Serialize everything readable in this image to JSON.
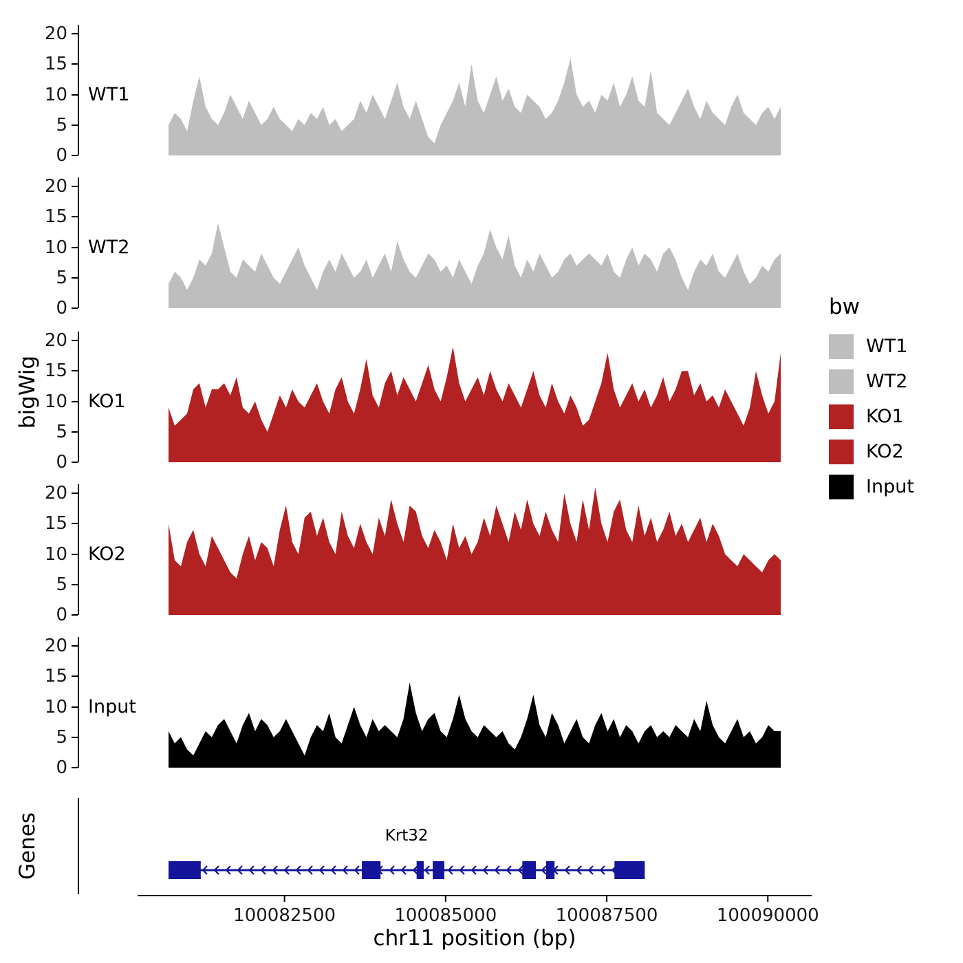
{
  "labels": {
    "y_axis": "bigWig",
    "genes_axis": "Genes",
    "x_axis": "chr11 position (bp)"
  },
  "legend": {
    "title": "bw",
    "items": [
      {
        "label": "WT1",
        "color": "#BEBEBE"
      },
      {
        "label": "WT2",
        "color": "#BEBEBE"
      },
      {
        "label": "KO1",
        "color": "#B22222"
      },
      {
        "label": "KO2",
        "color": "#B22222"
      },
      {
        "label": "Input",
        "color": "#000000"
      }
    ]
  },
  "chart_data": {
    "type": "area",
    "title": "",
    "xlabel": "chr11 position (bp)",
    "ylabel": "bigWig",
    "xlim": [
      100080700,
      100090200
    ],
    "ylim": [
      0,
      21.5
    ],
    "y_ticks": [
      0,
      5,
      10,
      15,
      20
    ],
    "x_ticks": [
      100082500,
      100085000,
      100087500,
      100090000
    ],
    "grid": false,
    "legend_position": "right",
    "series": [
      {
        "name": "WT1",
        "color": "#BEBEBE",
        "values": [
          5,
          7,
          6,
          4,
          9,
          13,
          8,
          6,
          5,
          7,
          10,
          8,
          6,
          9,
          7,
          5,
          6,
          8,
          6,
          5,
          4,
          6,
          5,
          7,
          6,
          8,
          5,
          6,
          4,
          5,
          6,
          9,
          7,
          10,
          8,
          6,
          9,
          12,
          8,
          6,
          9,
          6,
          3,
          2,
          5,
          7,
          9,
          12,
          8,
          15,
          9,
          7,
          10,
          13,
          9,
          11,
          8,
          7,
          10,
          9,
          8,
          6,
          7,
          9,
          12,
          16,
          10,
          8,
          9,
          7,
          10,
          9,
          12,
          8,
          10,
          13,
          9,
          8,
          14,
          7,
          6,
          5,
          7,
          9,
          11,
          8,
          6,
          9,
          7,
          6,
          5,
          8,
          10,
          7,
          6,
          5,
          7,
          8,
          6,
          8
        ]
      },
      {
        "name": "WT2",
        "color": "#BEBEBE",
        "values": [
          4,
          6,
          5,
          3,
          5,
          8,
          7,
          9,
          14,
          10,
          6,
          5,
          8,
          7,
          6,
          9,
          7,
          5,
          4,
          6,
          8,
          10,
          7,
          5,
          3,
          6,
          8,
          6,
          9,
          7,
          5,
          6,
          8,
          5,
          7,
          9,
          6,
          11,
          8,
          6,
          5,
          7,
          9,
          8,
          6,
          7,
          5,
          8,
          6,
          4,
          7,
          9,
          13,
          10,
          8,
          12,
          7,
          5,
          8,
          6,
          9,
          7,
          5,
          6,
          8,
          9,
          7,
          8,
          9,
          8,
          7,
          9,
          6,
          5,
          8,
          10,
          7,
          9,
          8,
          6,
          9,
          10,
          8,
          5,
          3,
          6,
          8,
          7,
          9,
          6,
          5,
          7,
          9,
          6,
          4,
          5,
          7,
          6,
          8,
          9
        ]
      },
      {
        "name": "KO1",
        "color": "#B22222",
        "values": [
          9,
          6,
          7,
          8,
          12,
          13,
          9,
          12,
          12,
          13,
          11,
          14,
          9,
          8,
          10,
          7,
          5,
          8,
          11,
          9,
          12,
          10,
          9,
          11,
          13,
          10,
          8,
          12,
          14,
          10,
          8,
          12,
          17,
          11,
          9,
          13,
          15,
          11,
          14,
          12,
          10,
          13,
          16,
          12,
          10,
          14,
          19,
          13,
          10,
          12,
          14,
          11,
          15,
          12,
          10,
          13,
          11,
          9,
          12,
          15,
          11,
          9,
          13,
          10,
          8,
          11,
          9,
          6,
          7,
          10,
          13,
          18,
          12,
          9,
          11,
          13,
          10,
          12,
          9,
          11,
          14,
          10,
          12,
          15,
          15,
          11,
          13,
          10,
          11,
          9,
          12,
          10,
          8,
          6,
          9,
          15,
          11,
          8,
          10,
          18
        ]
      },
      {
        "name": "KO2",
        "color": "#B22222",
        "values": [
          15,
          9,
          8,
          12,
          14,
          10,
          8,
          13,
          11,
          9,
          7,
          6,
          10,
          13,
          9,
          12,
          11,
          8,
          14,
          18,
          12,
          10,
          16,
          17,
          13,
          16,
          12,
          10,
          17,
          13,
          11,
          15,
          12,
          10,
          16,
          13,
          19,
          15,
          12,
          18,
          17,
          13,
          11,
          14,
          12,
          9,
          15,
          11,
          13,
          10,
          12,
          16,
          13,
          18,
          15,
          12,
          17,
          14,
          19,
          15,
          13,
          17,
          14,
          12,
          20,
          15,
          12,
          19,
          14,
          21,
          15,
          12,
          17,
          19,
          14,
          12,
          18,
          13,
          16,
          12,
          14,
          17,
          13,
          15,
          12,
          14,
          16,
          12,
          15,
          13,
          10,
          9,
          8,
          10,
          9,
          8,
          7,
          9,
          10,
          9
        ]
      },
      {
        "name": "Input",
        "color": "#000000",
        "values": [
          6,
          4,
          5,
          3,
          2,
          4,
          6,
          5,
          7,
          8,
          6,
          4,
          7,
          9,
          6,
          8,
          7,
          5,
          6,
          8,
          6,
          4,
          2,
          5,
          7,
          6,
          9,
          5,
          4,
          7,
          10,
          7,
          5,
          8,
          6,
          7,
          6,
          5,
          8,
          14,
          9,
          6,
          8,
          9,
          6,
          5,
          8,
          12,
          8,
          6,
          5,
          7,
          6,
          5,
          6,
          4,
          3,
          5,
          8,
          12,
          7,
          5,
          9,
          7,
          4,
          6,
          8,
          5,
          4,
          7,
          9,
          6,
          8,
          5,
          7,
          6,
          4,
          6,
          7,
          5,
          6,
          5,
          7,
          6,
          5,
          8,
          6,
          11,
          7,
          5,
          4,
          6,
          8,
          5,
          6,
          4,
          5,
          7,
          6,
          6
        ]
      }
    ],
    "gene": {
      "name": "Krt32",
      "chrom": "chr11",
      "strand": "-",
      "start": 100080700,
      "end": 100088090,
      "color": "#15159B",
      "exons": [
        [
          100080700,
          100081200
        ],
        [
          100083700,
          100083990
        ],
        [
          100084550,
          100084660
        ],
        [
          100084800,
          100084980
        ],
        [
          100086190,
          100086400
        ],
        [
          100086560,
          100086690
        ],
        [
          100087620,
          100088090
        ]
      ]
    }
  }
}
